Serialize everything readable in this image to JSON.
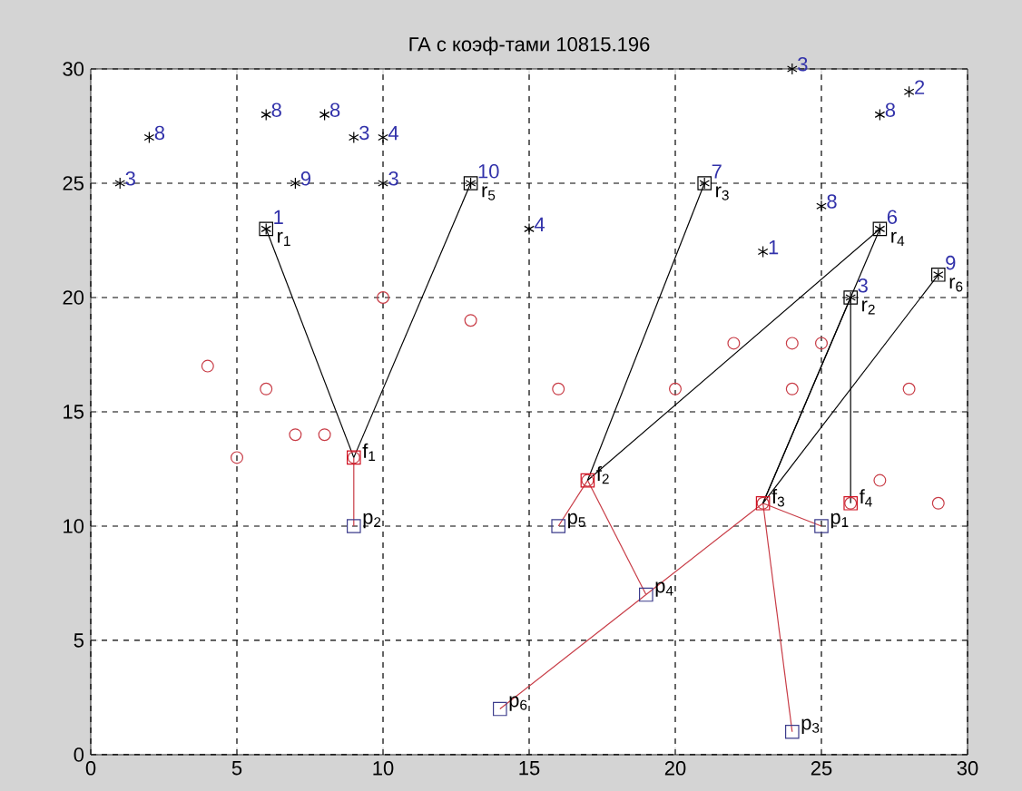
{
  "chart_data": {
    "type": "scatter",
    "title": "ГА с коэф-тами 10815.196",
    "xlim": [
      0,
      30
    ],
    "ylim": [
      0,
      30
    ],
    "xticks": [
      0,
      5,
      10,
      15,
      20,
      25,
      30
    ],
    "yticks": [
      0,
      5,
      10,
      15,
      20,
      25,
      30
    ],
    "grid": true,
    "series": [
      {
        "type": "line",
        "color": "#c83c46",
        "x": [
          9,
          9
        ],
        "values": [
          13,
          10
        ]
      },
      {
        "type": "line",
        "color": "#c83c46",
        "x": [
          17,
          16
        ],
        "values": [
          12,
          10
        ]
      },
      {
        "type": "line",
        "color": "#c83c46",
        "x": [
          17,
          19
        ],
        "values": [
          12,
          7
        ]
      },
      {
        "type": "line",
        "color": "#c83c46",
        "x": [
          14,
          19
        ],
        "values": [
          2,
          7
        ]
      },
      {
        "type": "line",
        "color": "#c83c46",
        "x": [
          19,
          23
        ],
        "values": [
          7,
          11
        ]
      },
      {
        "type": "line",
        "color": "#c83c46",
        "x": [
          23,
          24
        ],
        "values": [
          11,
          1
        ]
      },
      {
        "type": "line",
        "color": "#c83c46",
        "x": [
          23,
          25
        ],
        "values": [
          11,
          10
        ]
      },
      {
        "type": "line",
        "color": "#000000",
        "x": [
          6,
          9
        ],
        "values": [
          23,
          13
        ]
      },
      {
        "type": "line",
        "color": "#000000",
        "x": [
          13,
          9
        ],
        "values": [
          25,
          13
        ]
      },
      {
        "type": "line",
        "color": "#000000",
        "x": [
          21,
          17
        ],
        "values": [
          25,
          12
        ]
      },
      {
        "type": "line",
        "color": "#000000",
        "x": [
          27,
          17
        ],
        "values": [
          23,
          12
        ]
      },
      {
        "type": "line",
        "color": "#000000",
        "x": [
          27,
          23
        ],
        "values": [
          23,
          11
        ]
      },
      {
        "type": "line",
        "color": "#000000",
        "x": [
          26,
          23
        ],
        "values": [
          20,
          11
        ]
      },
      {
        "type": "line",
        "color": "#000000",
        "x": [
          29,
          23
        ],
        "values": [
          21,
          11
        ]
      },
      {
        "type": "line",
        "color": "#000000",
        "x": [
          26,
          26
        ],
        "values": [
          20,
          11
        ]
      },
      {
        "type": "scatter",
        "marker": "circle",
        "color": "#c83c46",
        "x": [
          4,
          5,
          6,
          7,
          8,
          10,
          13,
          16,
          20,
          22,
          24,
          25,
          24,
          28,
          27,
          29,
          9,
          17,
          23,
          26
        ],
        "values": [
          17,
          13,
          16,
          14,
          14,
          20,
          19,
          16,
          16,
          18,
          18,
          18,
          16,
          16,
          12,
          11,
          13,
          12,
          11,
          11
        ]
      },
      {
        "type": "scatter",
        "marker": "square",
        "color": "#d01020",
        "x": [
          9,
          17,
          23,
          26
        ],
        "values": [
          13,
          12,
          11,
          11
        ]
      },
      {
        "type": "scatter",
        "marker": "square",
        "color": "#3c3c8c",
        "x": [
          25,
          9,
          24,
          19,
          16,
          14
        ],
        "values": [
          10,
          10,
          1,
          7,
          10,
          2
        ]
      },
      {
        "type": "scatter",
        "marker": "square",
        "color": "#000000",
        "x": [
          6,
          26,
          21,
          27,
          13,
          29
        ],
        "values": [
          23,
          20,
          25,
          23,
          25,
          21
        ]
      },
      {
        "type": "scatter",
        "marker": "cross",
        "color": "#000000",
        "x": [
          1,
          2,
          6,
          8,
          9,
          10,
          7,
          10,
          13,
          6,
          24,
          28,
          27,
          21,
          25,
          15,
          23,
          27,
          26,
          29
        ],
        "values": [
          25,
          27,
          28,
          28,
          27,
          27,
          25,
          25,
          25,
          23,
          30,
          29,
          28,
          25,
          24,
          23,
          22,
          23,
          20,
          21
        ]
      }
    ],
    "annotations": [
      {
        "text": "f$_{1}$",
        "x": 9,
        "y": 13
      },
      {
        "text": "f$_{2}$",
        "x": 17,
        "y": 12
      },
      {
        "text": "f$_{3}$",
        "x": 23,
        "y": 11
      },
      {
        "text": "f$_{4}$",
        "x": 26,
        "y": 11
      },
      {
        "text": "p$_{1}$",
        "x": 25,
        "y": 10
      },
      {
        "text": "p$_{2}$",
        "x": 9,
        "y": 10
      },
      {
        "text": "p$_{3}$",
        "x": 24,
        "y": 1
      },
      {
        "text": "p$_{4}$",
        "x": 19,
        "y": 7
      },
      {
        "text": "p$_{5}$",
        "x": 16,
        "y": 10
      },
      {
        "text": "p$_{6}$",
        "x": 14,
        "y": 2
      },
      {
        "text": "r$_{1}$",
        "x": 6,
        "y": 23
      },
      {
        "text": "r$_{2}$",
        "x": 26,
        "y": 20
      },
      {
        "text": "r$_{3}$",
        "x": 21,
        "y": 25
      },
      {
        "text": "r$_{4}$",
        "x": 27,
        "y": 23
      },
      {
        "text": "r$_{5}$",
        "x": 13,
        "y": 25
      },
      {
        "text": "r$_{6}$",
        "x": 29,
        "y": 21
      },
      {
        "text": "3",
        "x": 1,
        "y": 25
      },
      {
        "text": "8",
        "x": 2,
        "y": 27
      },
      {
        "text": "8",
        "x": 6,
        "y": 28
      },
      {
        "text": "8",
        "x": 8,
        "y": 28
      },
      {
        "text": "3",
        "x": 9,
        "y": 27
      },
      {
        "text": "4",
        "x": 10,
        "y": 27
      },
      {
        "text": "9",
        "x": 7,
        "y": 25
      },
      {
        "text": "3",
        "x": 10,
        "y": 25
      },
      {
        "text": "10",
        "x": 13,
        "y": 25
      },
      {
        "text": "1",
        "x": 6,
        "y": 23
      },
      {
        "text": "3",
        "x": 24,
        "y": 30
      },
      {
        "text": "2",
        "x": 28,
        "y": 29
      },
      {
        "text": "8",
        "x": 27,
        "y": 28
      },
      {
        "text": "7",
        "x": 21,
        "y": 25
      },
      {
        "text": "8",
        "x": 25,
        "y": 24
      },
      {
        "text": "4",
        "x": 15,
        "y": 23
      },
      {
        "text": "1",
        "x": 23,
        "y": 22
      },
      {
        "text": "6",
        "x": 27,
        "y": 23
      },
      {
        "text": "3",
        "x": 26,
        "y": 20
      },
      {
        "text": "9",
        "x": 29,
        "y": 21
      }
    ]
  }
}
